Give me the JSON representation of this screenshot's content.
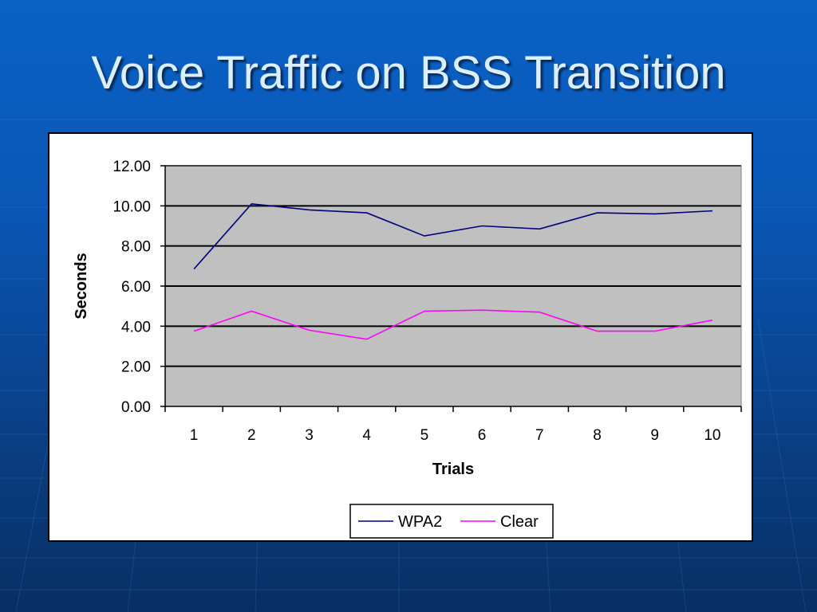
{
  "slide": {
    "title": "Voice Traffic on BSS Transition"
  },
  "colors": {
    "background": "#0a56b4",
    "title_text": "#dcefff",
    "plot_area": "#c0c0c0",
    "wpa2": "#000080",
    "clear": "#ff00ff"
  },
  "chart_data": {
    "type": "line",
    "title": "",
    "xlabel": "Trials",
    "ylabel": "Seconds",
    "categories": [
      "1",
      "2",
      "3",
      "4",
      "5",
      "6",
      "7",
      "8",
      "9",
      "10"
    ],
    "ylim": [
      0,
      12
    ],
    "yticks": [
      "0.00",
      "2.00",
      "4.00",
      "6.00",
      "8.00",
      "10.00",
      "12.00"
    ],
    "grid": true,
    "legend_position": "bottom",
    "series": [
      {
        "name": "WPA2",
        "color": "#000080",
        "values": [
          6.85,
          10.1,
          9.8,
          9.65,
          8.5,
          9.0,
          8.85,
          9.65,
          9.6,
          9.75
        ]
      },
      {
        "name": "Clear",
        "color": "#ff00ff",
        "values": [
          3.75,
          4.75,
          3.8,
          3.35,
          4.75,
          4.8,
          4.7,
          3.75,
          3.75,
          4.3
        ]
      }
    ]
  }
}
